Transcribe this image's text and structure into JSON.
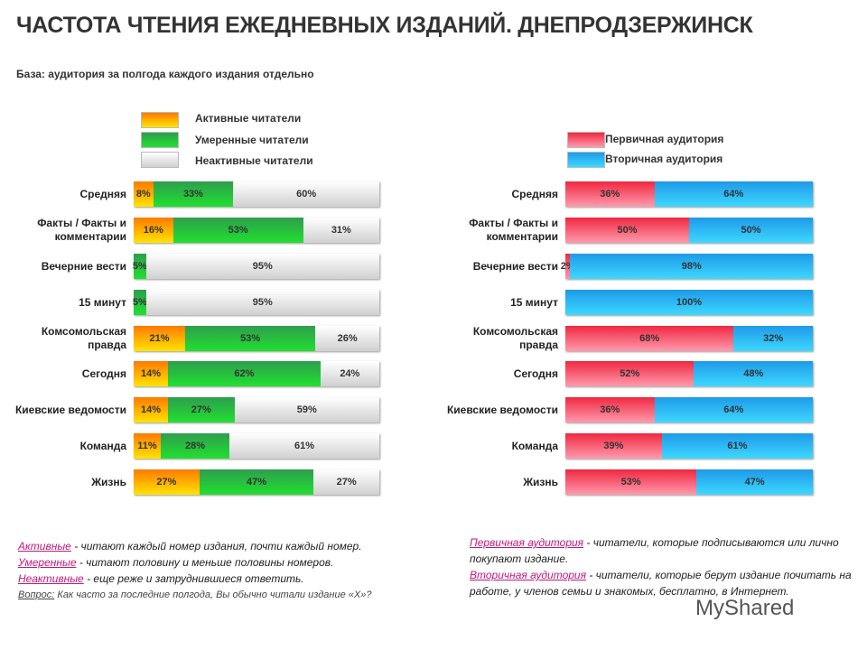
{
  "title": "ЧАСТОТА ЧТЕНИЯ ЕЖЕДНЕВНЫХ ИЗДАНИЙ. ДНЕПРОДЗЕРЖИНСК",
  "base": "База: аудитория за полгода каждого издания отдельно",
  "chart_data": [
    {
      "type": "bar",
      "orientation": "horizontal",
      "stacked": true,
      "unit": "%",
      "categories": [
        "Средняя",
        "Факты / Факты и комментарии",
        "Вечерние вести",
        "15 минут",
        "Комсомольская правда",
        "Сегодня",
        "Киевские ведомости",
        "Команда",
        "Жизнь"
      ],
      "series": [
        {
          "name": "Активные читатели",
          "color": "#ff9900",
          "values": [
            8,
            16,
            0,
            0,
            21,
            14,
            14,
            11,
            27
          ]
        },
        {
          "name": "Умеренные читатели",
          "color": "#22c83a",
          "values": [
            33,
            53,
            5,
            5,
            53,
            62,
            27,
            28,
            47
          ]
        },
        {
          "name": "Неактивные читатели",
          "color": "#e0e0e0",
          "values": [
            60,
            31,
            95,
            95,
            26,
            24,
            59,
            61,
            27
          ]
        }
      ],
      "legend": "top"
    },
    {
      "type": "bar",
      "orientation": "horizontal",
      "stacked": true,
      "unit": "%",
      "categories": [
        "Средняя",
        "Факты / Факты и комментарии",
        "Вечерние вести",
        "15 минут",
        "Комсомольская правда",
        "Сегодня",
        "Киевские ведомости",
        "Команда",
        "Жизнь"
      ],
      "series": [
        {
          "name": "Первичная аудитория",
          "color": "#f0405a",
          "values": [
            36,
            50,
            2,
            0,
            68,
            52,
            36,
            39,
            53
          ]
        },
        {
          "name": "Вторичная аудитория",
          "color": "#2eb8f8",
          "values": [
            64,
            50,
            98,
            100,
            32,
            48,
            64,
            61,
            47
          ]
        }
      ],
      "legend": "top-right"
    }
  ],
  "notes_left": [
    {
      "term": "Активные",
      "text": " - читают каждый номер издания, почти каждый номер."
    },
    {
      "term": "Умеренные",
      "text": " - читают половину и меньше  половины номеров."
    },
    {
      "term": "Неактивные",
      "text": " - еще реже и затруднившиеся ответить."
    }
  ],
  "question": {
    "term": "Вопрос:",
    "text": " Как часто за последние  полгода,  Вы обычно читали издание  «Х»?"
  },
  "notes_right": [
    {
      "term": "Первичная аудитория",
      "text": " - читатели, которые подписываются или лично покупают издание."
    },
    {
      "term": "Вторичная аудитория",
      "text": " - читатели, которые берут издание почитать на работе, у членов семьи и знакомых, бесплатно, в Интернет."
    }
  ],
  "watermark": "MyShared"
}
